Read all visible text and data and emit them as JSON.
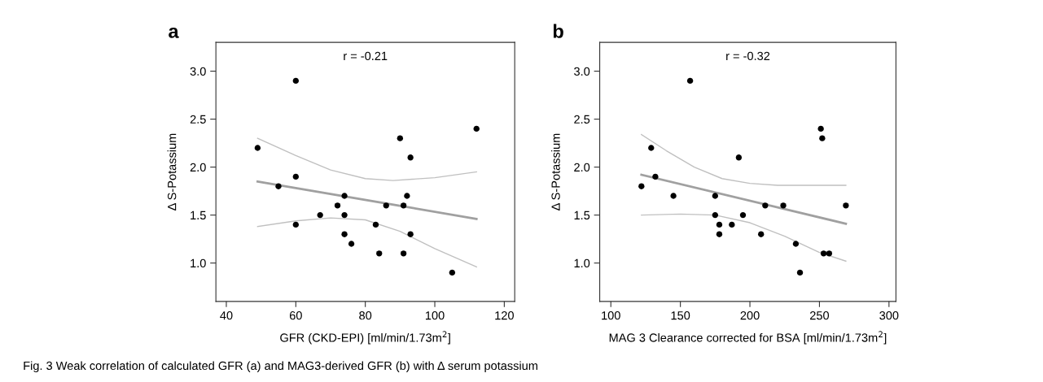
{
  "chart_data": [
    {
      "type": "scatter",
      "title": "a",
      "xlabel": "GFR (CKD-EPI) [ml/min/1.73m$^{2}$]",
      "ylabel": "Δ S-Potassium",
      "xlim": [
        37,
        123
      ],
      "xticks": [
        40,
        60,
        80,
        100,
        120
      ],
      "ylim": [
        0.6,
        3.3
      ],
      "yticks": [
        {
          "value": 1,
          "label": "1.0"
        },
        {
          "value": 1.5,
          "label": "1.5"
        },
        {
          "value": 2,
          "label": "2.0"
        },
        {
          "value": 2.5,
          "label": "2.5"
        },
        {
          "value": 3,
          "label": "3.0"
        }
      ],
      "grid": false,
      "annotations": [
        "r = -0.21",
        "Fig. 3 Weak correlation of calculated GFR (a) and MAG3-derived GFR (b) with Δ serum potassium"
      ],
      "series": [
        {
          "color": "#000000",
          "marker": "circle",
          "x": [
            49,
            55,
            60,
            60,
            60,
            67,
            72,
            74,
            74,
            74,
            76,
            83,
            84,
            86,
            90,
            91,
            91,
            92,
            93,
            93,
            105,
            112
          ],
          "values": [
            2.2,
            1.8,
            2.9,
            1.9,
            1.4,
            1.5,
            1.6,
            1.7,
            1.5,
            1.3,
            1.2,
            1.4,
            1.1,
            1.6,
            2.3,
            1.6,
            1.1,
            1.7,
            2.1,
            1.3,
            0.9,
            2.4
          ]
        },
        {
          "type": "line",
          "marker": "none",
          "color": "#a0a0a0",
          "x": [
            49,
            112
          ],
          "values": [
            1.85,
            1.46
          ]
        },
        {
          "type": "line",
          "marker": "none",
          "color": "#c0c0c0",
          "x": [
            49,
            60,
            70,
            80,
            88,
            100,
            112
          ],
          "values": [
            2.3,
            2.12,
            1.97,
            1.88,
            1.86,
            1.89,
            1.95
          ]
        },
        {
          "type": "line",
          "marker": "none",
          "color": "#c0c0c0",
          "x": [
            49,
            60,
            70,
            80,
            90,
            100,
            112
          ],
          "values": [
            1.38,
            1.44,
            1.47,
            1.45,
            1.33,
            1.15,
            0.96
          ]
        }
      ]
    },
    {
      "type": "scatter",
      "title": "b",
      "xlabel": "MAG 3 Clearance corrected for BSA [ml/min/1.73m$^{2}$]",
      "ylabel": "Δ S-Potassium",
      "xlim": [
        92,
        305
      ],
      "xticks": [
        100,
        150,
        200,
        250,
        300
      ],
      "ylim": [
        0.6,
        3.3
      ],
      "yticks": [
        {
          "value": 1,
          "label": "1.0"
        },
        {
          "value": 1.5,
          "label": "1.5"
        },
        {
          "value": 2,
          "label": "2.0"
        },
        {
          "value": 2.5,
          "label": "2.5"
        },
        {
          "value": 3,
          "label": "3.0"
        }
      ],
      "grid": false,
      "annotations": [
        "r = -0.32"
      ],
      "series": [
        {
          "color": "#000000",
          "marker": "circle",
          "x": [
            122,
            129,
            132,
            145,
            157,
            175,
            175,
            178,
            178,
            187,
            192,
            195,
            208,
            211,
            224,
            233,
            236,
            251,
            252,
            253,
            257,
            269
          ],
          "values": [
            1.8,
            2.2,
            1.9,
            1.7,
            2.9,
            1.7,
            1.5,
            1.4,
            1.3,
            1.4,
            2.1,
            1.5,
            1.3,
            1.6,
            1.6,
            1.2,
            0.9,
            2.4,
            2.3,
            1.1,
            1.1,
            1.6
          ]
        },
        {
          "type": "line",
          "marker": "none",
          "color": "#a0a0a0",
          "x": [
            122,
            269
          ],
          "values": [
            1.92,
            1.41
          ]
        },
        {
          "type": "line",
          "marker": "none",
          "color": "#c0c0c0",
          "x": [
            122,
            140,
            160,
            180,
            200,
            220,
            269
          ],
          "values": [
            2.34,
            2.17,
            2.0,
            1.88,
            1.83,
            1.81,
            1.81
          ]
        },
        {
          "type": "line",
          "marker": "none",
          "color": "#c0c0c0",
          "x": [
            122,
            150,
            175,
            200,
            225,
            250,
            269
          ],
          "values": [
            1.5,
            1.51,
            1.5,
            1.42,
            1.28,
            1.11,
            1.02
          ]
        }
      ]
    }
  ]
}
